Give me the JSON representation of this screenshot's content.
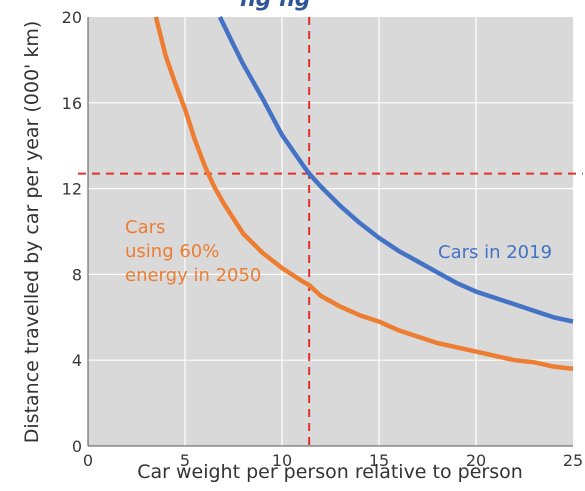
{
  "partial_title": "ng ng",
  "chart_data": {
    "type": "line",
    "title": "",
    "xlabel": "Car weight per person relative to person",
    "ylabel": "Distance travelled by car per year (000' km)",
    "xlim": [
      0,
      25
    ],
    "ylim": [
      0,
      20
    ],
    "xticks": [
      0,
      5,
      10,
      15,
      20,
      25
    ],
    "yticks": [
      0,
      4,
      8,
      12,
      16,
      20
    ],
    "grid": true,
    "background": "#d9d9d9",
    "series": [
      {
        "name": "Cars in 2019",
        "color": "#4472c4",
        "label_lines": [
          "Cars in 2019"
        ],
        "x": [
          6.8,
          7.5,
          8,
          9,
          10,
          11,
          11.4,
          12,
          13,
          14,
          15,
          16,
          17,
          18,
          19,
          20,
          21,
          22,
          23,
          24,
          25
        ],
        "y": [
          20,
          18.7,
          17.8,
          16.2,
          14.5,
          13.2,
          12.7,
          12.1,
          11.2,
          10.4,
          9.7,
          9.1,
          8.6,
          8.1,
          7.6,
          7.2,
          6.9,
          6.6,
          6.3,
          6.0,
          5.8
        ]
      },
      {
        "name": "Cars using 60% energy in 2050",
        "color": "#ed7d31",
        "label_lines": [
          "Cars",
          "using 60%",
          "energy in 2050"
        ],
        "x": [
          3.5,
          4,
          4.5,
          5,
          5.5,
          6,
          6.5,
          7,
          7.5,
          8,
          9,
          10,
          11,
          11.4,
          12,
          13,
          14,
          15,
          16,
          17,
          18,
          19,
          20,
          21,
          22,
          23,
          24,
          25
        ],
        "y": [
          20,
          18.2,
          16.9,
          15.7,
          14.3,
          13.1,
          12.1,
          11.3,
          10.6,
          9.9,
          9.0,
          8.3,
          7.7,
          7.5,
          7.0,
          6.5,
          6.1,
          5.8,
          5.4,
          5.1,
          4.8,
          4.6,
          4.4,
          4.2,
          4.0,
          3.9,
          3.7,
          3.6
        ]
      }
    ],
    "reference_lines": {
      "color": "#e03030",
      "vertical_x": 11.4,
      "horizontal_y": 12.7
    }
  }
}
